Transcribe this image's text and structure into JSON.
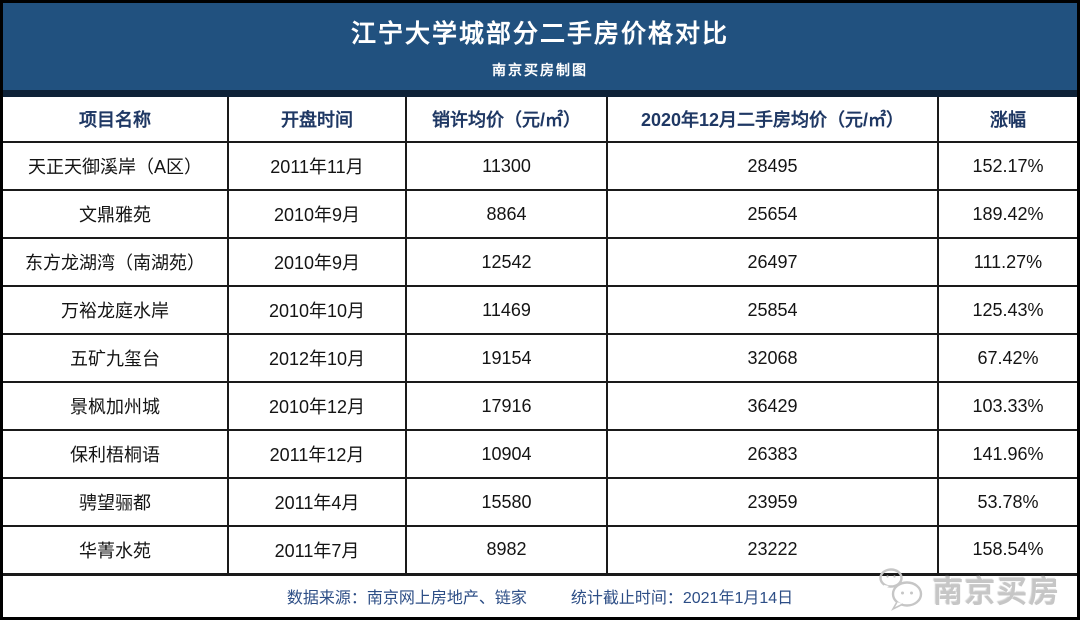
{
  "header": {
    "title": "江宁大学城部分二手房价格对比",
    "subtitle": "南京买房制图"
  },
  "table": {
    "columns": [
      "项目名称",
      "开盘时间",
      "销许均价（元/㎡）",
      "2020年12月二手房均价（元/㎡）",
      "涨幅"
    ],
    "rows": [
      [
        "天正天御溪岸（A区）",
        "2011年11月",
        "11300",
        "28495",
        "152.17%"
      ],
      [
        "文鼎雅苑",
        "2010年9月",
        "8864",
        "25654",
        "189.42%"
      ],
      [
        "东方龙湖湾（南湖苑）",
        "2010年9月",
        "12542",
        "26497",
        "111.27%"
      ],
      [
        "万裕龙庭水岸",
        "2010年10月",
        "11469",
        "25854",
        "125.43%"
      ],
      [
        "五矿九玺台",
        "2012年10月",
        "19154",
        "32068",
        "67.42%"
      ],
      [
        "景枫加州城",
        "2010年12月",
        "17916",
        "36429",
        "103.33%"
      ],
      [
        "保利梧桐语",
        "2011年12月",
        "10904",
        "26383",
        "141.96%"
      ],
      [
        "骋望骊都",
        "2011年4月",
        "15580",
        "23959",
        "53.78%"
      ],
      [
        "华菁水苑",
        "2011年7月",
        "8982",
        "23222",
        "158.54%"
      ]
    ]
  },
  "footer": {
    "source": "数据来源：南京网上房地产、链家",
    "deadline": "统计截止时间：2021年1月14日"
  },
  "watermark": {
    "icon": "wechat-chat-bubbles-icon",
    "label": "南京买房"
  },
  "colors": {
    "title_band": "#21517F",
    "band_strip": "#0E2238",
    "header_text": "#1F3864",
    "footer_text": "#2D4E86",
    "body_text": "#141414",
    "watermark": "#C6C6C6"
  },
  "chart_data": {
    "type": "table",
    "title": "江宁大学城部分二手房价格对比",
    "subtitle": "南京买房制图",
    "columns": [
      "项目名称",
      "开盘时间",
      "销许均价（元/㎡）",
      "2020年12月二手房均价（元/㎡）",
      "涨幅"
    ],
    "rows": [
      {
        "project": "天正天御溪岸（A区）",
        "open_date": "2011年11月",
        "permit_avg_price": 11300,
        "dec2020_avg_price": 28495,
        "growth": "152.17%"
      },
      {
        "project": "文鼎雅苑",
        "open_date": "2010年9月",
        "permit_avg_price": 8864,
        "dec2020_avg_price": 25654,
        "growth": "189.42%"
      },
      {
        "project": "东方龙湖湾（南湖苑）",
        "open_date": "2010年9月",
        "permit_avg_price": 12542,
        "dec2020_avg_price": 26497,
        "growth": "111.27%"
      },
      {
        "project": "万裕龙庭水岸",
        "open_date": "2010年10月",
        "permit_avg_price": 11469,
        "dec2020_avg_price": 25854,
        "growth": "125.43%"
      },
      {
        "project": "五矿九玺台",
        "open_date": "2012年10月",
        "permit_avg_price": 19154,
        "dec2020_avg_price": 32068,
        "growth": "67.42%"
      },
      {
        "project": "景枫加州城",
        "open_date": "2010年12月",
        "permit_avg_price": 17916,
        "dec2020_avg_price": 36429,
        "growth": "103.33%"
      },
      {
        "project": "保利梧桐语",
        "open_date": "2011年12月",
        "permit_avg_price": 10904,
        "dec2020_avg_price": 26383,
        "growth": "141.96%"
      },
      {
        "project": "骋望骊都",
        "open_date": "2011年4月",
        "permit_avg_price": 15580,
        "dec2020_avg_price": 23959,
        "growth": "53.78%"
      },
      {
        "project": "华菁水苑",
        "open_date": "2011年7月",
        "permit_avg_price": 8982,
        "dec2020_avg_price": 23222,
        "growth": "158.54%"
      }
    ],
    "notes": [
      "数据来源：南京网上房地产、链家",
      "统计截止时间：2021年1月14日"
    ]
  }
}
